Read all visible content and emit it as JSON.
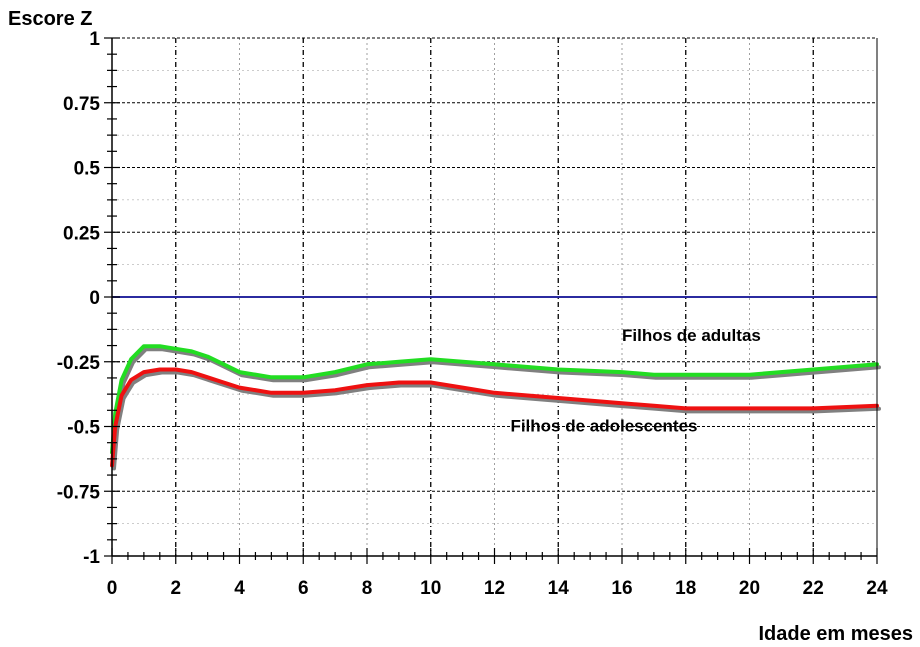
{
  "chart_data": {
    "type": "line",
    "title": "",
    "ylabel": "Escore Z",
    "xlabel": "Idade em meses",
    "xlim": [
      0,
      24
    ],
    "ylim": [
      -1,
      1
    ],
    "xticks": [
      0,
      2,
      4,
      6,
      8,
      10,
      12,
      14,
      16,
      18,
      20,
      22,
      24
    ],
    "yticks": [
      1,
      0.75,
      0.5,
      0.25,
      0,
      -0.25,
      -0.5,
      -0.75,
      -1
    ],
    "ytick_labels": [
      "1",
      "0.75",
      "0.5",
      "0.25",
      "0",
      "-0.25",
      "-0.5",
      "-0.75",
      "-1"
    ],
    "grid": true,
    "reference_line": {
      "y": 0,
      "color": "#2b2ba0"
    },
    "series": [
      {
        "name": "Filhos de adultas",
        "color": "#22dd22",
        "x": [
          0,
          0.1,
          0.3,
          0.6,
          1.0,
          1.5,
          2.0,
          2.5,
          3.0,
          3.5,
          4.0,
          5.0,
          6.0,
          7.0,
          8.0,
          9.0,
          10.0,
          11.0,
          12.0,
          14.0,
          16.0,
          17.0,
          18.0,
          19.0,
          20.0,
          22.0,
          24.0
        ],
        "y": [
          -0.6,
          -0.45,
          -0.32,
          -0.24,
          -0.19,
          -0.19,
          -0.2,
          -0.21,
          -0.23,
          -0.26,
          -0.29,
          -0.31,
          -0.31,
          -0.29,
          -0.26,
          -0.25,
          -0.24,
          -0.25,
          -0.26,
          -0.28,
          -0.29,
          -0.3,
          -0.3,
          -0.3,
          -0.3,
          -0.28,
          -0.26
        ]
      },
      {
        "name": "Filhos de adolescentes",
        "color": "#ee1111",
        "x": [
          0,
          0.1,
          0.3,
          0.6,
          1.0,
          1.5,
          2.0,
          2.5,
          3.0,
          3.5,
          4.0,
          5.0,
          6.0,
          7.0,
          8.0,
          9.0,
          10.0,
          11.0,
          12.0,
          14.0,
          16.0,
          17.0,
          18.0,
          19.0,
          20.0,
          22.0,
          24.0
        ],
        "y": [
          -0.65,
          -0.5,
          -0.38,
          -0.32,
          -0.29,
          -0.28,
          -0.28,
          -0.29,
          -0.31,
          -0.33,
          -0.35,
          -0.37,
          -0.37,
          -0.36,
          -0.34,
          -0.33,
          -0.33,
          -0.35,
          -0.37,
          -0.39,
          -0.41,
          -0.42,
          -0.43,
          -0.43,
          -0.43,
          -0.43,
          -0.42
        ]
      }
    ],
    "annotations": [
      {
        "text": "Filhos de adultas",
        "x": 16.0,
        "y": -0.17
      },
      {
        "text": "Filhos de adolescentes",
        "x": 12.5,
        "y": -0.52
      }
    ]
  }
}
